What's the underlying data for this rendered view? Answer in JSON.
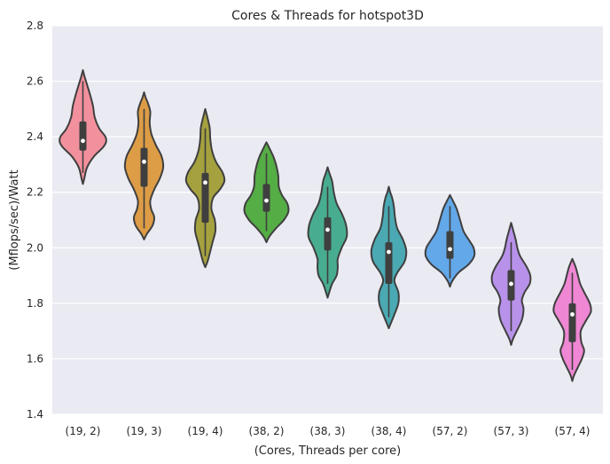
{
  "chart_data": {
    "type": "violin",
    "title": "Cores & Threads for hotspot3D",
    "xlabel": "(Cores, Threads per core)",
    "ylabel": "(Mflops/sec)/Watt",
    "ylim": [
      1.4,
      2.8
    ],
    "yticks": [
      "1.4",
      "1.6",
      "1.8",
      "2.0",
      "2.2",
      "2.4",
      "2.6",
      "2.8"
    ],
    "grid": true,
    "categories": [
      "(19, 2)",
      "(19, 3)",
      "(19, 4)",
      "(38, 2)",
      "(38, 3)",
      "(38, 4)",
      "(57, 2)",
      "(57, 3)",
      "(57, 4)"
    ],
    "colors": [
      "#f2919d",
      "#dd9c46",
      "#a5a13f",
      "#55ad45",
      "#48ad90",
      "#4aa9b3",
      "#63a8e8",
      "#b892ea",
      "#ef87d4"
    ],
    "violins": [
      {
        "category": "(19, 2)",
        "min": 2.23,
        "max": 2.64,
        "q1": 2.35,
        "median": 2.385,
        "q3": 2.455,
        "whisker_low": 2.27,
        "whisker_high": 2.6,
        "profile": [
          [
            2.23,
            0.0
          ],
          [
            2.25,
            0.05
          ],
          [
            2.29,
            0.15
          ],
          [
            2.33,
            0.4
          ],
          [
            2.36,
            0.7
          ],
          [
            2.38,
            0.82
          ],
          [
            2.4,
            0.8
          ],
          [
            2.43,
            0.58
          ],
          [
            2.47,
            0.42
          ],
          [
            2.51,
            0.36
          ],
          [
            2.55,
            0.26
          ],
          [
            2.59,
            0.14
          ],
          [
            2.62,
            0.05
          ],
          [
            2.64,
            0.0
          ]
        ]
      },
      {
        "category": "(19, 3)",
        "min": 2.03,
        "max": 2.56,
        "q1": 2.22,
        "median": 2.31,
        "q3": 2.36,
        "whisker_low": 2.07,
        "whisker_high": 2.5,
        "profile": [
          [
            2.03,
            0.0
          ],
          [
            2.05,
            0.1
          ],
          [
            2.08,
            0.3
          ],
          [
            2.11,
            0.36
          ],
          [
            2.14,
            0.25
          ],
          [
            2.17,
            0.22
          ],
          [
            2.21,
            0.36
          ],
          [
            2.25,
            0.56
          ],
          [
            2.29,
            0.68
          ],
          [
            2.33,
            0.62
          ],
          [
            2.37,
            0.42
          ],
          [
            2.41,
            0.26
          ],
          [
            2.45,
            0.2
          ],
          [
            2.49,
            0.22
          ],
          [
            2.52,
            0.14
          ],
          [
            2.54,
            0.06
          ],
          [
            2.56,
            0.0
          ]
        ]
      },
      {
        "category": "(19, 4)",
        "min": 1.93,
        "max": 2.5,
        "q1": 2.09,
        "median": 2.235,
        "q3": 2.27,
        "whisker_low": 1.97,
        "whisker_high": 2.43,
        "profile": [
          [
            1.93,
            0.0
          ],
          [
            1.95,
            0.08
          ],
          [
            1.98,
            0.16
          ],
          [
            2.02,
            0.26
          ],
          [
            2.06,
            0.36
          ],
          [
            2.1,
            0.34
          ],
          [
            2.14,
            0.22
          ],
          [
            2.18,
            0.28
          ],
          [
            2.21,
            0.52
          ],
          [
            2.24,
            0.68
          ],
          [
            2.27,
            0.62
          ],
          [
            2.31,
            0.38
          ],
          [
            2.35,
            0.24
          ],
          [
            2.39,
            0.18
          ],
          [
            2.43,
            0.16
          ],
          [
            2.46,
            0.1
          ],
          [
            2.48,
            0.05
          ],
          [
            2.5,
            0.0
          ]
        ]
      },
      {
        "category": "(38, 2)",
        "min": 2.02,
        "max": 2.38,
        "q1": 2.13,
        "median": 2.17,
        "q3": 2.23,
        "whisker_low": 2.06,
        "whisker_high": 2.34,
        "profile": [
          [
            2.02,
            0.0
          ],
          [
            2.04,
            0.1
          ],
          [
            2.07,
            0.34
          ],
          [
            2.1,
            0.62
          ],
          [
            2.13,
            0.78
          ],
          [
            2.16,
            0.74
          ],
          [
            2.19,
            0.55
          ],
          [
            2.22,
            0.44
          ],
          [
            2.26,
            0.42
          ],
          [
            2.3,
            0.34
          ],
          [
            2.33,
            0.24
          ],
          [
            2.36,
            0.1
          ],
          [
            2.38,
            0.0
          ]
        ]
      },
      {
        "category": "(38, 3)",
        "min": 1.82,
        "max": 2.29,
        "q1": 1.99,
        "median": 2.065,
        "q3": 2.11,
        "whisker_low": 1.87,
        "whisker_high": 2.22,
        "profile": [
          [
            1.82,
            0.0
          ],
          [
            1.84,
            0.06
          ],
          [
            1.87,
            0.16
          ],
          [
            1.9,
            0.32
          ],
          [
            1.93,
            0.36
          ],
          [
            1.96,
            0.36
          ],
          [
            2.0,
            0.5
          ],
          [
            2.04,
            0.68
          ],
          [
            2.08,
            0.66
          ],
          [
            2.12,
            0.52
          ],
          [
            2.16,
            0.32
          ],
          [
            2.2,
            0.22
          ],
          [
            2.24,
            0.16
          ],
          [
            2.27,
            0.06
          ],
          [
            2.29,
            0.0
          ]
        ]
      },
      {
        "category": "(38, 4)",
        "min": 1.71,
        "max": 2.22,
        "q1": 1.87,
        "median": 1.985,
        "q3": 2.02,
        "whisker_low": 1.75,
        "whisker_high": 2.15,
        "profile": [
          [
            1.71,
            0.0
          ],
          [
            1.73,
            0.08
          ],
          [
            1.76,
            0.2
          ],
          [
            1.8,
            0.34
          ],
          [
            1.84,
            0.34
          ],
          [
            1.88,
            0.2
          ],
          [
            1.91,
            0.3
          ],
          [
            1.95,
            0.56
          ],
          [
            1.99,
            0.62
          ],
          [
            2.03,
            0.5
          ],
          [
            2.07,
            0.3
          ],
          [
            2.11,
            0.22
          ],
          [
            2.15,
            0.18
          ],
          [
            2.18,
            0.12
          ],
          [
            2.2,
            0.05
          ],
          [
            2.22,
            0.0
          ]
        ]
      },
      {
        "category": "(57, 2)",
        "min": 1.86,
        "max": 2.19,
        "q1": 1.96,
        "median": 1.995,
        "q3": 2.06,
        "whisker_low": 1.89,
        "whisker_high": 2.15,
        "profile": [
          [
            1.86,
            0.0
          ],
          [
            1.88,
            0.08
          ],
          [
            1.91,
            0.3
          ],
          [
            1.94,
            0.66
          ],
          [
            1.97,
            0.86
          ],
          [
            2.0,
            0.84
          ],
          [
            2.03,
            0.66
          ],
          [
            2.06,
            0.48
          ],
          [
            2.1,
            0.36
          ],
          [
            2.14,
            0.24
          ],
          [
            2.17,
            0.1
          ],
          [
            2.19,
            0.0
          ]
        ]
      },
      {
        "category": "(57, 3)",
        "min": 1.65,
        "max": 2.09,
        "q1": 1.81,
        "median": 1.87,
        "q3": 1.92,
        "whisker_low": 1.7,
        "whisker_high": 2.02,
        "profile": [
          [
            1.65,
            0.0
          ],
          [
            1.67,
            0.06
          ],
          [
            1.7,
            0.2
          ],
          [
            1.74,
            0.38
          ],
          [
            1.78,
            0.44
          ],
          [
            1.81,
            0.38
          ],
          [
            1.84,
            0.48
          ],
          [
            1.87,
            0.66
          ],
          [
            1.9,
            0.68
          ],
          [
            1.93,
            0.56
          ],
          [
            1.97,
            0.32
          ],
          [
            2.0,
            0.22
          ],
          [
            2.03,
            0.16
          ],
          [
            2.06,
            0.08
          ],
          [
            2.09,
            0.0
          ]
        ]
      },
      {
        "category": "(57, 4)",
        "min": 1.52,
        "max": 1.96,
        "q1": 1.66,
        "median": 1.76,
        "q3": 1.8,
        "whisker_low": 1.56,
        "whisker_high": 1.91,
        "profile": [
          [
            1.52,
            0.0
          ],
          [
            1.54,
            0.06
          ],
          [
            1.57,
            0.2
          ],
          [
            1.6,
            0.34
          ],
          [
            1.63,
            0.42
          ],
          [
            1.66,
            0.32
          ],
          [
            1.7,
            0.3
          ],
          [
            1.74,
            0.5
          ],
          [
            1.77,
            0.66
          ],
          [
            1.8,
            0.62
          ],
          [
            1.84,
            0.42
          ],
          [
            1.87,
            0.28
          ],
          [
            1.9,
            0.2
          ],
          [
            1.93,
            0.12
          ],
          [
            1.96,
            0.0
          ]
        ]
      }
    ]
  }
}
